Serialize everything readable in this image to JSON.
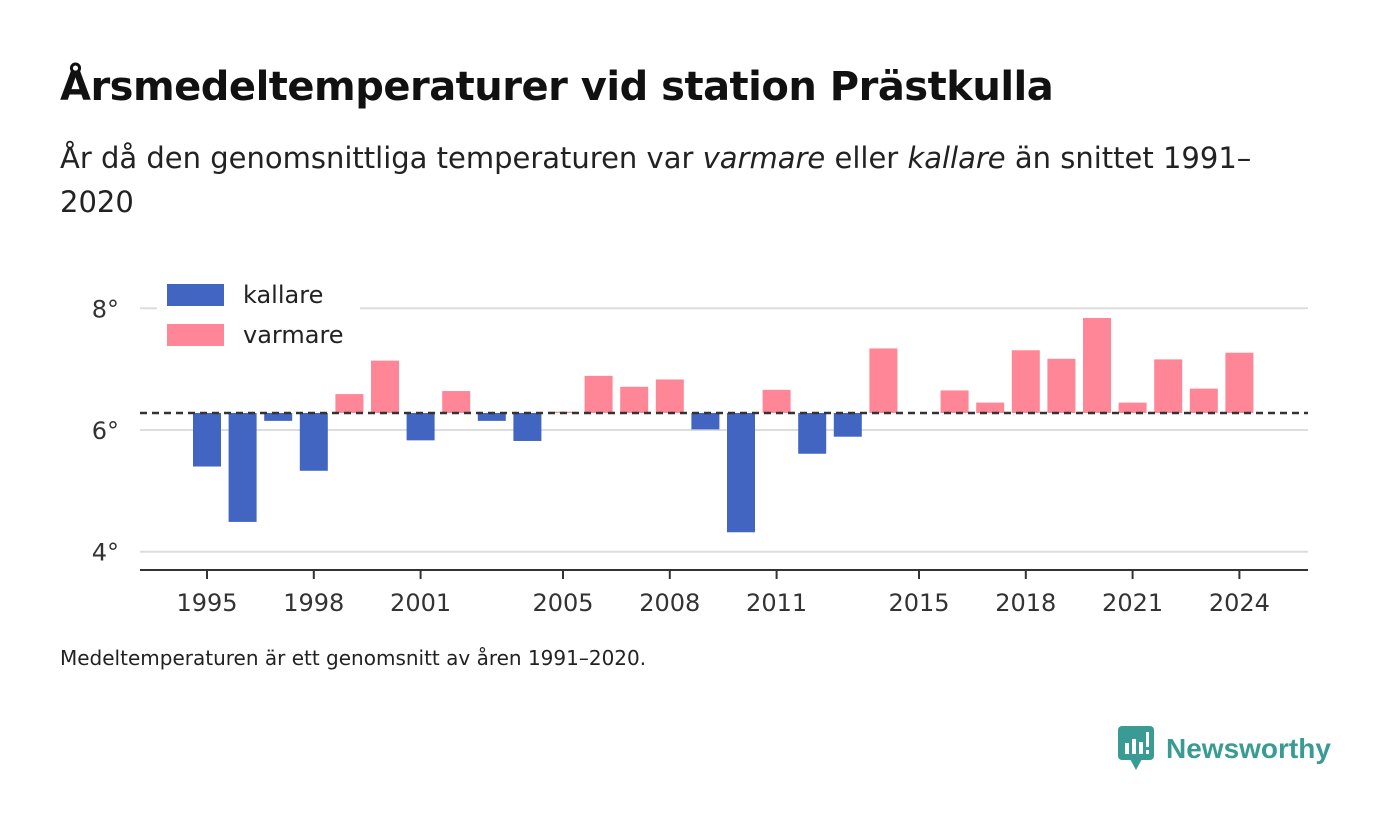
{
  "header": {
    "title": "Årsmedeltemperaturer vid station Prästkulla",
    "subtitle_part1": "År då den genomsnittliga temperaturen var ",
    "subtitle_warm": "varmare",
    "subtitle_part2": " eller ",
    "subtitle_cold": "kallare",
    "subtitle_part3": " än snittet 1991–2020"
  },
  "footer": {
    "note": "Medeltemperaturen är ett genomsnitt av åren 1991–2020.",
    "brand": "Newsworthy"
  },
  "colors": {
    "colder": "#4165c0",
    "warmer": "#ff8696",
    "baseline": "#333333",
    "grid": "#dddddd",
    "brand": "#3a9b94"
  },
  "chart_data": {
    "type": "bar",
    "baseline": 6.28,
    "ylim": [
      3.7,
      8.3
    ],
    "yticks": [
      4,
      6,
      8
    ],
    "ytick_labels": [
      "4°",
      "6°",
      "8°"
    ],
    "xticks": [
      1995,
      1998,
      2001,
      2005,
      2008,
      2011,
      2015,
      2018,
      2021,
      2024
    ],
    "xtick_labels": [
      "1995",
      "1998",
      "2001",
      "2005",
      "2008",
      "2011",
      "2015",
      "2018",
      "2021",
      "2024"
    ],
    "legend": [
      {
        "name": "kallare",
        "key": "colder"
      },
      {
        "name": "varmare",
        "key": "warmer"
      }
    ],
    "legend_position": "top-left",
    "grid": true,
    "years": [
      1995,
      1996,
      1997,
      1998,
      1999,
      2000,
      2001,
      2002,
      2003,
      2004,
      2005,
      2006,
      2007,
      2008,
      2009,
      2010,
      2011,
      2012,
      2013,
      2014,
      2015,
      2016,
      2017,
      2018,
      2019,
      2020,
      2021,
      2022,
      2023,
      2024
    ],
    "values": [
      5.4,
      4.49,
      6.15,
      5.33,
      6.59,
      7.14,
      5.83,
      6.64,
      6.15,
      5.82,
      6.3,
      6.89,
      6.71,
      6.83,
      6.01,
      4.32,
      6.66,
      5.61,
      5.89,
      7.34,
      6.28,
      6.65,
      6.45,
      7.31,
      7.17,
      7.84,
      6.45,
      7.16,
      6.68,
      7.27
    ]
  }
}
